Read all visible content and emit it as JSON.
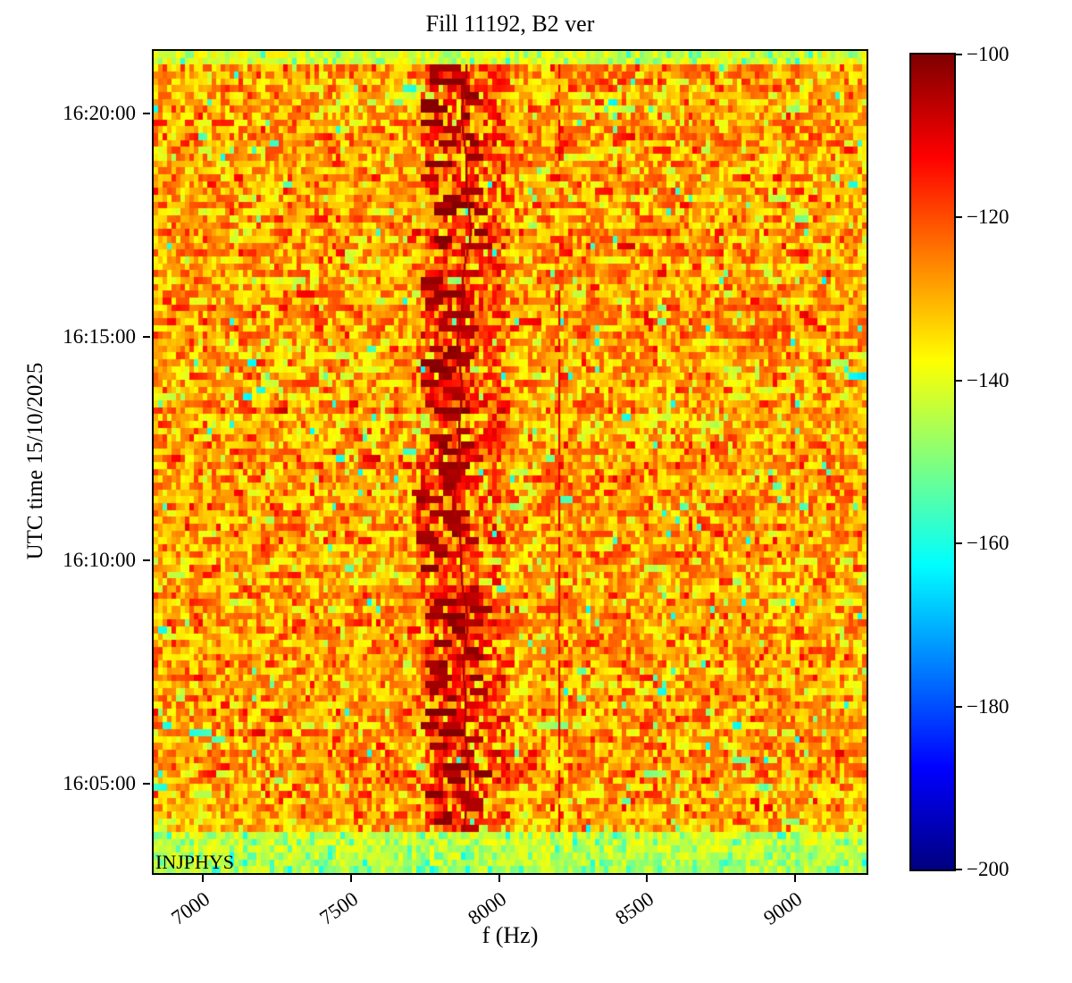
{
  "title": "Fill 11192, B2 ver",
  "chart_data": {
    "type": "heatmap",
    "subtype": "spectrogram",
    "title": "Fill 11192, B2 ver",
    "xlabel": "f (Hz)",
    "ylabel": "UTC time 15/10/2025",
    "annotation": "INJPHYS",
    "x_range_hz": [
      6834,
      9241
    ],
    "x_ticks": [
      7000,
      7500,
      8000,
      8500,
      9000
    ],
    "x_tick_labels": [
      "7000",
      "7500",
      "8000",
      "8500",
      "9000"
    ],
    "y_range_time": [
      "16:03:00",
      "16:21:24"
    ],
    "y_ticks": [
      "16:20:00",
      "16:15:00",
      "16:10:00",
      "16:05:00"
    ],
    "grid": false,
    "colorbar": {
      "colormap": "jet",
      "range_db": [
        -200,
        -100
      ],
      "ticks": [
        -100,
        -120,
        -140,
        -160,
        -180,
        -200
      ],
      "tick_labels": [
        "−100",
        "−120",
        "−140",
        "−160",
        "−180",
        "−200"
      ],
      "position": "right"
    },
    "features": {
      "background_noise_db": [
        -140,
        -108
      ],
      "noise_cell_hz": 15,
      "noise_cell_sec": 9.2,
      "dark_band": {
        "center_hz": 7876,
        "wander_hz": 30,
        "blob_offset_hz": [
          -120,
          45
        ],
        "blob_db": [
          -106,
          -100
        ]
      },
      "solid_line_hz": 7876,
      "solid_line_db": -103,
      "dashed_line_hz": 8203,
      "dashed_line_db": -108,
      "top_calibration_band_db": [
        -158,
        -134
      ],
      "bottom_calibration_band_db": [
        -158,
        -134
      ],
      "top_band_rows": 2,
      "bottom_band_rows": 6
    },
    "accent_colors": {
      "hot_max": "#800000",
      "noise_orange": "#ff7800",
      "band_green": "#aaee55",
      "cold_min": "#000080"
    }
  }
}
